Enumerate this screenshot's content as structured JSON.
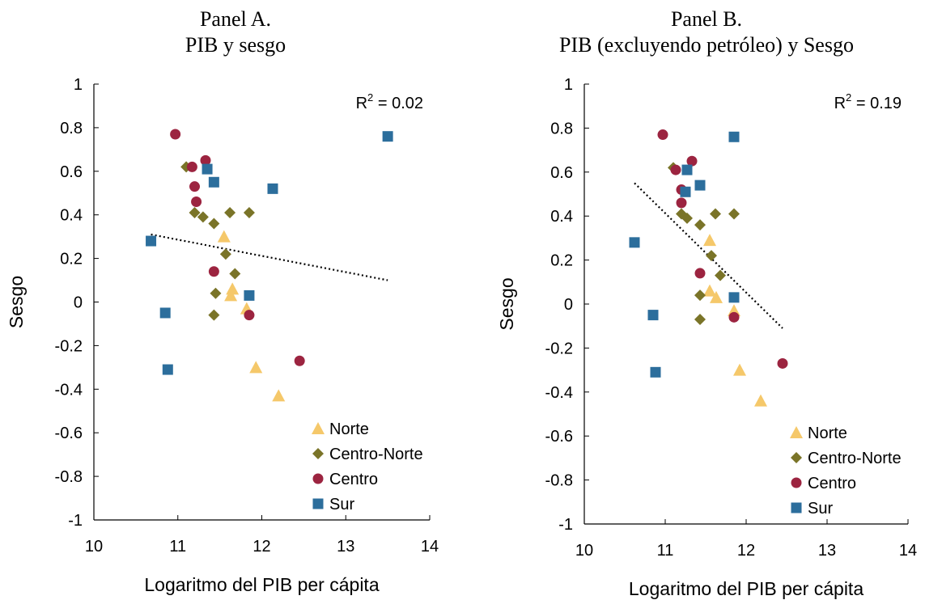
{
  "chart_data": [
    {
      "type": "scatter",
      "title_line1": "Panel A.",
      "title_line2": "PIB y sesgo",
      "xlabel": "Logaritmo del PIB per cápita",
      "ylabel": "Sesgo",
      "xlim": [
        10,
        14
      ],
      "ylim": [
        -1,
        1
      ],
      "x_ticks": [
        "10",
        "11",
        "12",
        "13",
        "14"
      ],
      "y_ticks": [
        "1",
        "0.8",
        "0.6",
        "0.4",
        "0.2",
        "0",
        "-0.2",
        "-0.4",
        "-0.6",
        "-0.8",
        "-1"
      ],
      "r2_prefix": "R",
      "r2_sup": "2",
      "r2_value": " = 0.02",
      "legend_position": "bottom-right",
      "trendline": {
        "x": [
          10.68,
          13.5
        ],
        "y": [
          0.31,
          0.1
        ],
        "style": "dotted"
      },
      "series": [
        {
          "name": "Norte",
          "marker": "triangle",
          "color": "#F5C86A",
          "points": [
            [
              11.55,
              0.3
            ],
            [
              11.65,
              0.06
            ],
            [
              11.63,
              0.03
            ],
            [
              11.82,
              -0.03
            ],
            [
              11.93,
              -0.3
            ],
            [
              12.2,
              -0.43
            ]
          ]
        },
        {
          "name": "Centro-Norte",
          "marker": "diamond",
          "color": "#7A7428",
          "points": [
            [
              11.1,
              0.62
            ],
            [
              11.2,
              0.41
            ],
            [
              11.3,
              0.39
            ],
            [
              11.43,
              0.36
            ],
            [
              11.62,
              0.41
            ],
            [
              11.85,
              0.41
            ],
            [
              11.57,
              0.22
            ],
            [
              11.68,
              0.13
            ],
            [
              11.45,
              0.04
            ],
            [
              11.43,
              -0.06
            ]
          ]
        },
        {
          "name": "Centro",
          "marker": "circle",
          "color": "#9C2440",
          "points": [
            [
              10.97,
              0.77
            ],
            [
              11.33,
              0.65
            ],
            [
              11.17,
              0.62
            ],
            [
              11.2,
              0.53
            ],
            [
              11.22,
              0.46
            ],
            [
              11.43,
              0.14
            ],
            [
              11.85,
              -0.06
            ],
            [
              12.45,
              -0.27
            ]
          ]
        },
        {
          "name": "Sur",
          "marker": "square",
          "color": "#2C6E9C",
          "points": [
            [
              13.5,
              0.76
            ],
            [
              11.35,
              0.61
            ],
            [
              11.43,
              0.55
            ],
            [
              12.13,
              0.52
            ],
            [
              10.68,
              0.28
            ],
            [
              11.85,
              0.03
            ],
            [
              10.85,
              -0.05
            ],
            [
              10.88,
              -0.31
            ]
          ]
        }
      ]
    },
    {
      "type": "scatter",
      "title_line1": "Panel B.",
      "title_line2": "PIB (excluyendo petróleo) y Sesgo",
      "xlabel": "Logaritmo del PIB per cápita",
      "ylabel": "Sesgo",
      "xlim": [
        10,
        14
      ],
      "ylim": [
        -1,
        1
      ],
      "x_ticks": [
        "10",
        "11",
        "12",
        "13",
        "14"
      ],
      "y_ticks": [
        "1",
        "0.8",
        "0.6",
        "0.4",
        "0.2",
        "0",
        "-0.2",
        "-0.4",
        "-0.6",
        "-0.8",
        "-1"
      ],
      "r2_prefix": "R",
      "r2_sup": "2",
      "r2_value": " = 0.19",
      "legend_position": "bottom-right",
      "trendline": {
        "x": [
          10.62,
          12.45
        ],
        "y": [
          0.55,
          -0.11
        ],
        "style": "dotted"
      },
      "series": [
        {
          "name": "Norte",
          "marker": "triangle",
          "color": "#F5C86A",
          "points": [
            [
              11.55,
              0.29
            ],
            [
              11.55,
              0.06
            ],
            [
              11.63,
              0.03
            ],
            [
              11.85,
              -0.03
            ],
            [
              11.92,
              -0.3
            ],
            [
              12.18,
              -0.44
            ]
          ]
        },
        {
          "name": "Centro-Norte",
          "marker": "diamond",
          "color": "#7A7428",
          "points": [
            [
              11.1,
              0.62
            ],
            [
              11.2,
              0.41
            ],
            [
              11.27,
              0.39
            ],
            [
              11.43,
              0.36
            ],
            [
              11.62,
              0.41
            ],
            [
              11.85,
              0.41
            ],
            [
              11.57,
              0.22
            ],
            [
              11.68,
              0.13
            ],
            [
              11.43,
              0.04
            ],
            [
              11.43,
              -0.07
            ]
          ]
        },
        {
          "name": "Centro",
          "marker": "circle",
          "color": "#9C2440",
          "points": [
            [
              10.97,
              0.77
            ],
            [
              11.33,
              0.65
            ],
            [
              11.13,
              0.61
            ],
            [
              11.2,
              0.52
            ],
            [
              11.2,
              0.46
            ],
            [
              11.43,
              0.14
            ],
            [
              11.85,
              -0.06
            ],
            [
              12.45,
              -0.27
            ]
          ]
        },
        {
          "name": "Sur",
          "marker": "square",
          "color": "#2C6E9C",
          "points": [
            [
              11.85,
              0.76
            ],
            [
              11.27,
              0.61
            ],
            [
              11.43,
              0.54
            ],
            [
              11.25,
              0.51
            ],
            [
              10.62,
              0.28
            ],
            [
              11.85,
              0.03
            ],
            [
              10.85,
              -0.05
            ],
            [
              10.88,
              -0.31
            ]
          ]
        }
      ]
    }
  ]
}
